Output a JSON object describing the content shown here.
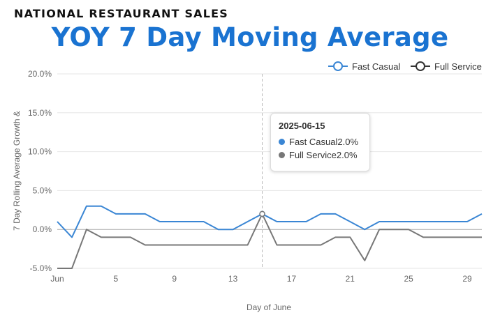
{
  "header": {
    "eyebrow": "NATIONAL RESTAURANT SALES",
    "title": "YOY 7 Day Moving Average"
  },
  "colors": {
    "fast_casual": "#3a86d4",
    "full_service": "#777777",
    "title": "#1a73d1"
  },
  "tooltip": {
    "date": "2025-06-15",
    "rows": [
      {
        "label": "Fast Casual",
        "value": "2.0%"
      },
      {
        "label": "Full Service",
        "value": "2.0%"
      }
    ]
  },
  "chart_data": {
    "type": "line",
    "title": "",
    "xlabel": "Day of June",
    "ylabel": "7 Day Rolling Average Growth &",
    "x": [
      1,
      2,
      3,
      4,
      5,
      6,
      7,
      8,
      9,
      10,
      11,
      12,
      13,
      14,
      15,
      16,
      17,
      18,
      19,
      20,
      21,
      22,
      23,
      24,
      25,
      26,
      27,
      28,
      29,
      30
    ],
    "x_tick_labels": [
      {
        "x": 1,
        "label": "Jun"
      },
      {
        "x": 5,
        "label": "5"
      },
      {
        "x": 9,
        "label": "9"
      },
      {
        "x": 13,
        "label": "13"
      },
      {
        "x": 17,
        "label": "17"
      },
      {
        "x": 21,
        "label": "21"
      },
      {
        "x": 25,
        "label": "25"
      },
      {
        "x": 29,
        "label": "29"
      }
    ],
    "ylim": [
      -5,
      20
    ],
    "y_ticks": [
      -5,
      0,
      5,
      10,
      15,
      20
    ],
    "y_tick_labels": [
      "-5.0%",
      "0.0%",
      "5.0%",
      "10.0%",
      "15.0%",
      "20.0%"
    ],
    "grid": true,
    "legend_position": "top-right",
    "highlight_x": 15,
    "series": [
      {
        "name": "Fast Casual",
        "values": [
          1,
          -1,
          3,
          3,
          2,
          2,
          2,
          1,
          1,
          1,
          1,
          0,
          0,
          1,
          2,
          1,
          1,
          1,
          2,
          2,
          1,
          0,
          1,
          1,
          1,
          1,
          1,
          1,
          1,
          2
        ]
      },
      {
        "name": "Full Service",
        "values": [
          -5,
          -5,
          0,
          -1,
          -1,
          -1,
          -2,
          -2,
          -2,
          -2,
          -2,
          -2,
          -2,
          -2,
          2,
          -2,
          -2,
          -2,
          -2,
          -1,
          -1,
          -4,
          0,
          0,
          0,
          -1,
          -1,
          -1,
          -1,
          -1
        ]
      }
    ]
  }
}
